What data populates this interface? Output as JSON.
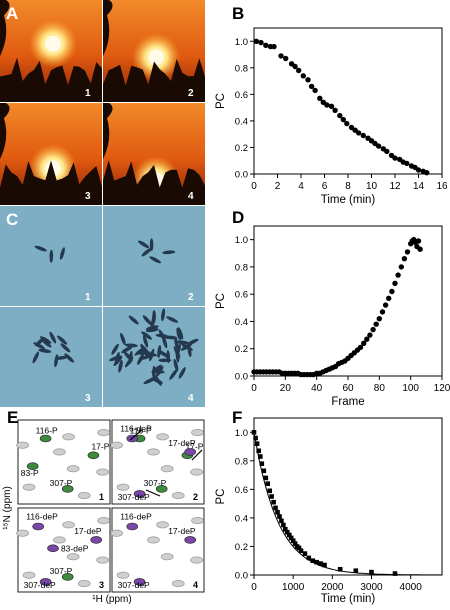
{
  "panels": {
    "A": {
      "letter": "A",
      "photos": [
        {
          "label": "1",
          "sun_level": 0.55
        },
        {
          "label": "2",
          "sun_level": 0.72
        },
        {
          "label": "3",
          "sun_level": 0.82
        },
        {
          "label": "4",
          "sun_level": 0.97
        }
      ]
    },
    "C": {
      "letter": "C",
      "photos": [
        {
          "label": "1",
          "cells": 3
        },
        {
          "label": "2",
          "cells": 5
        },
        {
          "label": "3",
          "cells": 12
        },
        {
          "label": "4",
          "cells": 60
        }
      ]
    },
    "E": {
      "letter": "E",
      "xlabel": "¹H (ppm)",
      "ylabel": "¹⁵N (ppm)",
      "subpanels": [
        {
          "label": "1",
          "peaks": [
            "116-P",
            "17-P",
            "83-P",
            "307-P"
          ]
        },
        {
          "label": "2",
          "peaks": [
            "116-P",
            "116-deP",
            "17-P",
            "17-deP",
            "307-P",
            "307-deP"
          ]
        },
        {
          "label": "3",
          "peaks": [
            "116-deP",
            "17-deP",
            "83-deP",
            "307-deP",
            "307-P"
          ]
        },
        {
          "label": "4",
          "peaks": [
            "116-deP",
            "17-deP",
            "307-deP"
          ]
        }
      ]
    }
  },
  "colors": {
    "green_peak": "#3c8a3c",
    "purple_peak": "#7a46a8",
    "gray_peak": "#9a9a9a",
    "sky_top": "#f07e1e",
    "sky_bottom": "#9a2208",
    "microscope_bg": "#7eaec4",
    "cell": "#24384e"
  },
  "chart_data": [
    {
      "panel": "B",
      "type": "scatter",
      "xlabel": "Time (min)",
      "ylabel": "PC",
      "xlim": [
        0,
        16
      ],
      "ylim": [
        0,
        1.1
      ],
      "xticks": [
        "0",
        "2",
        "4",
        "6",
        "8",
        "10",
        "12",
        "14",
        "16"
      ],
      "yticks": [
        "0.0",
        "0.2",
        "0.4",
        "0.6",
        "0.8",
        "1.0"
      ],
      "x": [
        0.2,
        0.6,
        1.0,
        1.4,
        1.7,
        2.3,
        2.7,
        3.2,
        3.5,
        3.8,
        4.2,
        4.6,
        4.9,
        5.2,
        5.6,
        5.9,
        6.2,
        6.6,
        6.9,
        7.3,
        7.6,
        7.9,
        8.3,
        8.6,
        8.9,
        9.3,
        9.7,
        10.0,
        10.3,
        10.6,
        11.0,
        11.3,
        11.7,
        12.0,
        12.4,
        12.7,
        13.0,
        13.4,
        13.7,
        14.0,
        14.4,
        14.7
      ],
      "y": [
        1.0,
        0.99,
        0.97,
        0.96,
        0.96,
        0.89,
        0.87,
        0.83,
        0.81,
        0.78,
        0.74,
        0.71,
        0.66,
        0.63,
        0.57,
        0.54,
        0.52,
        0.51,
        0.48,
        0.44,
        0.41,
        0.38,
        0.35,
        0.33,
        0.31,
        0.29,
        0.27,
        0.25,
        0.23,
        0.21,
        0.19,
        0.17,
        0.14,
        0.12,
        0.11,
        0.09,
        0.08,
        0.06,
        0.05,
        0.03,
        0.02,
        0.01
      ]
    },
    {
      "panel": "D",
      "type": "scatter",
      "xlabel": "Frame",
      "ylabel": "PC",
      "xlim": [
        0,
        120
      ],
      "ylim": [
        0,
        1.1
      ],
      "xticks": [
        "0",
        "20",
        "40",
        "60",
        "80",
        "100",
        "120"
      ],
      "yticks": [
        "0.0",
        "0.2",
        "0.4",
        "0.6",
        "0.8",
        "1.0"
      ],
      "x": [
        0,
        2,
        4,
        6,
        8,
        10,
        12,
        14,
        16,
        18,
        20,
        22,
        24,
        26,
        28,
        30,
        32,
        34,
        36,
        38,
        40,
        42,
        44,
        46,
        48,
        50,
        52,
        54,
        56,
        58,
        60,
        62,
        64,
        66,
        68,
        70,
        72,
        74,
        76,
        78,
        80,
        82,
        84,
        86,
        88,
        90,
        92,
        94,
        96,
        98,
        100,
        101,
        102,
        103,
        104,
        105,
        106
      ],
      "y": [
        0.03,
        0.03,
        0.03,
        0.03,
        0.03,
        0.03,
        0.03,
        0.03,
        0.03,
        0.02,
        0.02,
        0.02,
        0.02,
        0.02,
        0.02,
        0.01,
        0.01,
        0.01,
        0.01,
        0.01,
        0.02,
        0.02,
        0.03,
        0.04,
        0.05,
        0.06,
        0.07,
        0.09,
        0.1,
        0.11,
        0.13,
        0.15,
        0.17,
        0.19,
        0.21,
        0.24,
        0.27,
        0.3,
        0.34,
        0.38,
        0.42,
        0.47,
        0.52,
        0.57,
        0.62,
        0.68,
        0.74,
        0.8,
        0.86,
        0.91,
        0.97,
        0.99,
        1.0,
        0.98,
        0.95,
        0.99,
        0.93
      ]
    },
    {
      "panel": "F",
      "type": "line",
      "xlabel": "Time (min)",
      "ylabel": "PC",
      "xlim": [
        0,
        4800
      ],
      "ylim": [
        0,
        1.1
      ],
      "xticks": [
        "0",
        "1000",
        "2000",
        "3000",
        "4000"
      ],
      "yticks": [
        "0.0",
        "0.2",
        "0.4",
        "0.6",
        "0.8",
        "1.0"
      ],
      "x": [
        0,
        40,
        80,
        120,
        160,
        200,
        250,
        300,
        350,
        400,
        450,
        500,
        550,
        600,
        650,
        700,
        750,
        800,
        850,
        900,
        950,
        1000,
        1050,
        1100,
        1150,
        1200,
        1300,
        1400,
        1500,
        1600,
        1700,
        1800,
        2200,
        2600,
        3000,
        3600
      ],
      "y": [
        1.0,
        0.96,
        0.92,
        0.87,
        0.83,
        0.78,
        0.73,
        0.68,
        0.64,
        0.59,
        0.55,
        0.51,
        0.47,
        0.44,
        0.41,
        0.38,
        0.35,
        0.32,
        0.3,
        0.28,
        0.26,
        0.24,
        0.22,
        0.2,
        0.19,
        0.17,
        0.15,
        0.12,
        0.1,
        0.09,
        0.08,
        0.07,
        0.04,
        0.03,
        0.02,
        0.01
      ],
      "fit": true
    }
  ]
}
